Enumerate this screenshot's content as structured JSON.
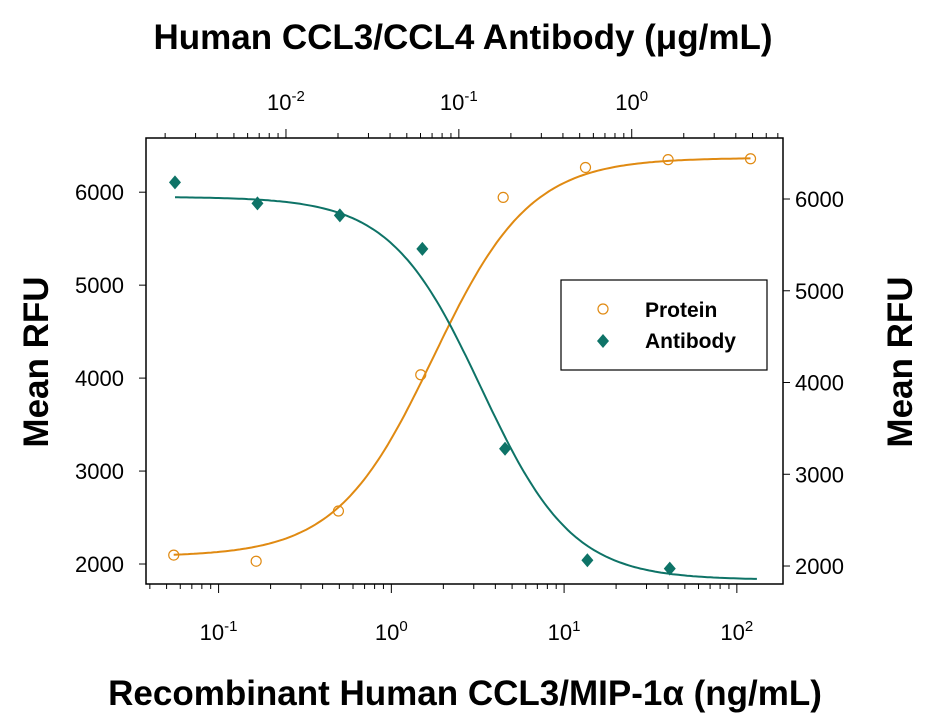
{
  "chart_data": {
    "type": "scatter",
    "title": "Human CCL3/CCL4 Antibody (μg/mL)",
    "xlabel": "Recombinant Human CCL3/MIP-1α  (ng/mL)",
    "ylabel": "Mean RFU",
    "y2label": "Mean RFU",
    "x_scale": "log",
    "x2_scale": "log",
    "xlim": [
      0.038,
      185
    ],
    "x2lim": [
      0.00155,
      7.5
    ],
    "ylim": [
      1785,
      6583
    ],
    "y2lim": [
      1804,
      6665
    ],
    "x_ticks": [
      {
        "base": "10",
        "exp": "-1",
        "value": 0.1
      },
      {
        "base": "10",
        "exp": "0",
        "value": 1
      },
      {
        "base": "10",
        "exp": "1",
        "value": 10
      },
      {
        "base": "10",
        "exp": "2",
        "value": 100
      }
    ],
    "x2_ticks": [
      {
        "base": "10",
        "exp": "-2",
        "value": 0.01
      },
      {
        "base": "10",
        "exp": "-1",
        "value": 0.1
      },
      {
        "base": "10",
        "exp": "0",
        "value": 1
      }
    ],
    "y_ticks": [
      "2000",
      "3000",
      "4000",
      "5000",
      "6000"
    ],
    "y2_ticks": [
      "2000",
      "3000",
      "4000",
      "5000",
      "6000"
    ],
    "grid": false,
    "legend_placement": "center-right",
    "series": [
      {
        "name": "Protein",
        "axis": "bottom",
        "marker": "open-circle",
        "color": "#E08A12",
        "x": [
          0.055,
          0.165,
          0.494,
          1.48,
          4.44,
          13.3,
          40,
          120
        ],
        "y": [
          2096,
          2030,
          2570,
          4036,
          5944,
          6266,
          6350,
          6360
        ]
      },
      {
        "name": "Antibody",
        "axis": "top",
        "marker": "filled-diamond",
        "color": "#0E7367",
        "x": [
          0.00228,
          0.00684,
          0.0205,
          0.0615,
          0.185,
          0.554,
          1.66
        ],
        "y": [
          6105,
          5880,
          5750,
          5390,
          3240,
          2040,
          1950
        ]
      }
    ]
  }
}
